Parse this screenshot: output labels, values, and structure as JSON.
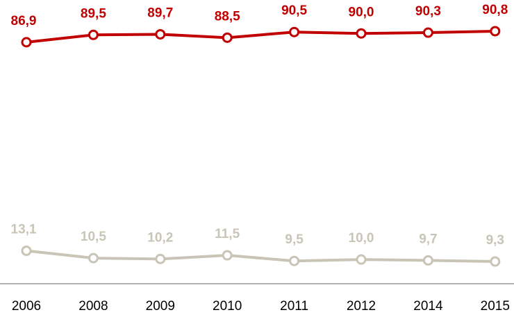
{
  "chart_data": {
    "type": "line",
    "categories": [
      "2006",
      "2008",
      "2009",
      "2010",
      "2011",
      "2012",
      "2014",
      "2015"
    ],
    "series": [
      {
        "color": "#c00000",
        "values": [
          86.9,
          89.5,
          89.7,
          88.5,
          90.5,
          90.0,
          90.3,
          90.8
        ],
        "value_labels": [
          "86,9",
          "89,5",
          "89,7",
          "88,5",
          "90,5",
          "90,0",
          "90,3",
          "90,8"
        ]
      },
      {
        "color": "#c8c5b6",
        "values": [
          13.1,
          10.5,
          10.2,
          11.5,
          9.5,
          10.0,
          9.7,
          9.3
        ],
        "value_labels": [
          "13,1",
          "10,5",
          "10,2",
          "11,5",
          "9,5",
          "10,0",
          "9,7",
          "9,3"
        ]
      }
    ],
    "ylim": [
      0,
      100
    ]
  }
}
